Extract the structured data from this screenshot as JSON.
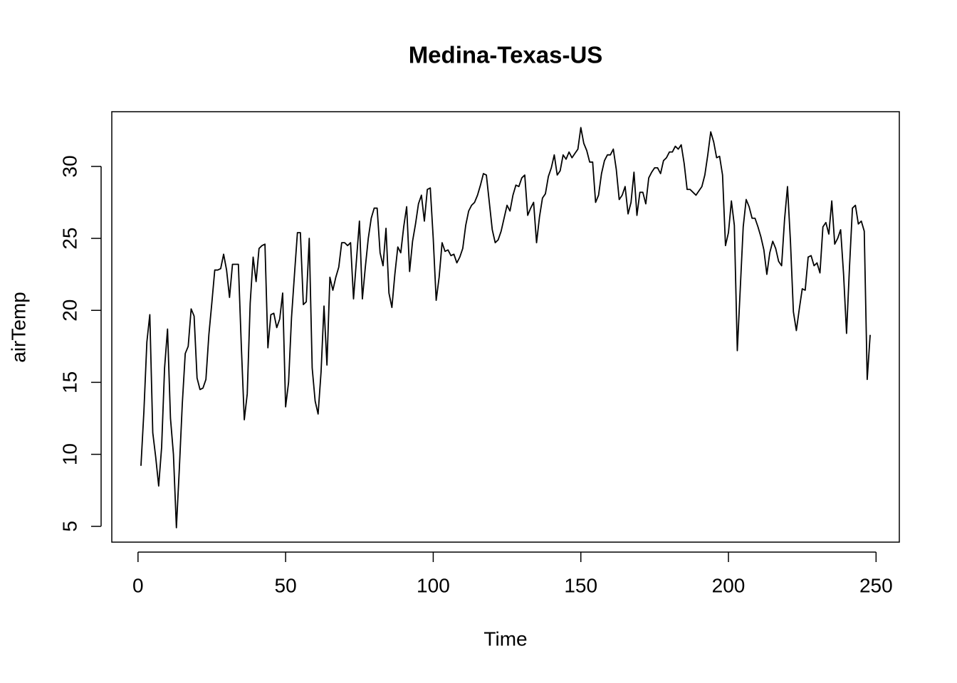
{
  "chart_data": {
    "type": "line",
    "title": "Medina-Texas-US",
    "xlabel": "Time",
    "ylabel": "airTemp",
    "x": [
      1,
      2,
      3,
      4,
      5,
      6,
      7,
      8,
      9,
      10,
      11,
      12,
      13,
      14,
      15,
      16,
      17,
      18,
      19,
      20,
      21,
      22,
      23,
      24,
      25,
      26,
      27,
      28,
      29,
      30,
      31,
      32,
      33,
      34,
      35,
      36,
      37,
      38,
      39,
      40,
      41,
      42,
      43,
      44,
      45,
      46,
      47,
      48,
      49,
      50,
      51,
      52,
      53,
      54,
      55,
      56,
      57,
      58,
      59,
      60,
      61,
      62,
      63,
      64,
      65,
      66,
      67,
      68,
      69,
      70,
      71,
      72,
      73,
      74,
      75,
      76,
      77,
      78,
      79,
      80,
      81,
      82,
      83,
      84,
      85,
      86,
      87,
      88,
      89,
      90,
      91,
      92,
      93,
      94,
      95,
      96,
      97,
      98,
      99,
      100,
      101,
      102,
      103,
      104,
      105,
      106,
      107,
      108,
      109,
      110,
      111,
      112,
      113,
      114,
      115,
      116,
      117,
      118,
      119,
      120,
      121,
      122,
      123,
      124,
      125,
      126,
      127,
      128,
      129,
      130,
      131,
      132,
      133,
      134,
      135,
      136,
      137,
      138,
      139,
      140,
      141,
      142,
      143,
      144,
      145,
      146,
      147,
      148,
      149,
      150,
      151,
      152,
      153,
      154,
      155,
      156,
      157,
      158,
      159,
      160,
      161,
      162,
      163,
      164,
      165,
      166,
      167,
      168,
      169,
      170,
      171,
      172,
      173,
      174,
      175,
      176,
      177,
      178,
      179,
      180,
      181,
      182,
      183,
      184,
      185,
      186,
      187,
      188,
      189,
      190,
      191,
      192,
      193,
      194,
      195,
      196,
      197,
      198,
      199,
      200,
      201,
      202,
      203,
      204,
      205,
      206,
      207,
      208,
      209,
      210,
      211,
      212,
      213,
      214,
      215,
      216,
      217,
      218,
      219,
      220,
      221,
      222,
      223,
      224,
      225,
      226,
      227,
      228,
      229,
      230,
      231,
      232,
      233,
      234,
      235,
      236,
      237,
      238,
      239,
      240,
      241,
      242,
      243,
      244,
      245,
      246,
      247,
      248
    ],
    "series": [
      {
        "name": "airTemp",
        "color": "#000000",
        "values": [
          9.2,
          13,
          17.8,
          19.7,
          11.5,
          9.8,
          7.8,
          10.5,
          16,
          18.7,
          12.5,
          10,
          4.9,
          9,
          13.5,
          17,
          17.5,
          20.1,
          19.6,
          15.3,
          14.5,
          14.6,
          15.2,
          18.3,
          20.5,
          22.8,
          22.8,
          22.9,
          23.9,
          22.8,
          20.9,
          23.2,
          23.2,
          23.2,
          17.5,
          12.4,
          14.2,
          20.5,
          23.7,
          22,
          24.3,
          24.5,
          24.6,
          17.4,
          19.7,
          19.8,
          18.8,
          19.4,
          21.2,
          13.3,
          15,
          19.5,
          22.5,
          25.4,
          25.4,
          20.4,
          20.6,
          25,
          16,
          13.7,
          12.8,
          15.7,
          20.3,
          16.2,
          22.3,
          21.4,
          22.3,
          23,
          24.7,
          24.7,
          24.5,
          24.7,
          20.8,
          23.5,
          26.2,
          20.8,
          23,
          25,
          26.4,
          27.1,
          27.1,
          24,
          23.1,
          25.7,
          21.2,
          20.2,
          22.5,
          24.4,
          24,
          25.8,
          27.2,
          22.7,
          24.8,
          26,
          27.4,
          28,
          26.2,
          28.4,
          28.5,
          25,
          20.7,
          22.3,
          24.7,
          24.1,
          24.2,
          23.8,
          23.9,
          23.3,
          23.7,
          24.3,
          25.9,
          26.9,
          27.3,
          27.5,
          28,
          28.7,
          29.5,
          29.4,
          27.5,
          25.6,
          24.7,
          24.9,
          25.5,
          26.4,
          27.3,
          26.9,
          28,
          28.7,
          28.6,
          29.2,
          29.4,
          26.6,
          27.1,
          27.5,
          24.7,
          26.5,
          27.8,
          28.1,
          29.3,
          29.9,
          30.8,
          29.4,
          29.7,
          30.8,
          30.5,
          31,
          30.6,
          30.9,
          31.2,
          32.7,
          31.6,
          31.1,
          30.3,
          30.3,
          27.5,
          28,
          29.5,
          30.4,
          30.8,
          30.8,
          31.2,
          29.8,
          27.7,
          28,
          28.6,
          26.7,
          27.5,
          29.6,
          26.6,
          28.2,
          28.2,
          27.4,
          29.2,
          29.6,
          29.9,
          29.9,
          29.5,
          30.4,
          30.6,
          31,
          31,
          31.4,
          31.2,
          31.5,
          30.2,
          28.4,
          28.4,
          28.2,
          28,
          28.3,
          28.6,
          29.4,
          30.8,
          32.4,
          31.7,
          30.6,
          30.7,
          29.4,
          24.5,
          25.4,
          27.6,
          25.9,
          17.2,
          21.5,
          25.8,
          27.7,
          27.2,
          26.4,
          26.4,
          25.8,
          25.1,
          24.2,
          22.5,
          24,
          24.8,
          24.3,
          23.4,
          23.1,
          26.3,
          28.6,
          24.8,
          19.9,
          18.6,
          20.1,
          21.5,
          21.4,
          23.7,
          23.8,
          23.1,
          23.3,
          22.6,
          25.8,
          26.1,
          25.3,
          27.6,
          24.6,
          25,
          25.6,
          22.5,
          18.4,
          23,
          27.1,
          27.3,
          26,
          26.2,
          25.5,
          15.2,
          18.3
        ]
      }
    ],
    "xlim": [
      -8.88,
      257.88
    ],
    "ylim": [
      3.9,
      33.8
    ],
    "xticks": [
      0,
      50,
      100,
      150,
      200,
      250
    ],
    "yticks": [
      5,
      10,
      15,
      20,
      25,
      30
    ]
  }
}
